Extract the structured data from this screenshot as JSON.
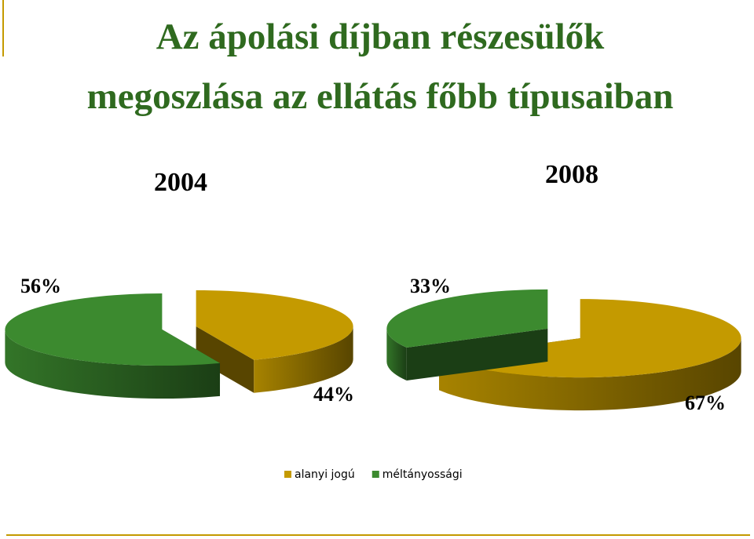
{
  "title": [
    "Az ápolási díjban részesülők",
    "megoszlása az ellátás főbb típusaiban"
  ],
  "legend": [
    {
      "name": "alanyi jogú",
      "color": "#c49a00"
    },
    {
      "name": "méltányossági",
      "color": "#3c8a2f"
    }
  ],
  "chart_data": [
    {
      "type": "pie",
      "title": "2004",
      "values": [
        44,
        56
      ],
      "value_labels": [
        "44%",
        "56%"
      ]
    },
    {
      "type": "pie",
      "title": "2008",
      "values": [
        67,
        33
      ],
      "value_labels": [
        "67%",
        "33%"
      ]
    }
  ]
}
